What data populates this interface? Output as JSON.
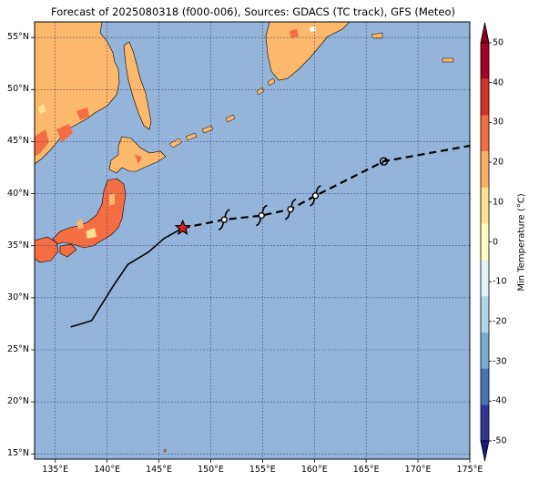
{
  "title": "Forecast of 2025080318 (f000-006), Sources: GDACS (TC track), GFS (Meteo)",
  "map": {
    "lon_range": [
      133,
      175
    ],
    "lat_range": [
      14.5,
      56.5
    ],
    "lon_ticks": [
      {
        "value": 135,
        "label": "135°E"
      },
      {
        "value": 140,
        "label": "140°E"
      },
      {
        "value": 145,
        "label": "145°E"
      },
      {
        "value": 150,
        "label": "150°E"
      },
      {
        "value": 155,
        "label": "155°E"
      },
      {
        "value": 160,
        "label": "160°E"
      },
      {
        "value": 165,
        "label": "165°E"
      },
      {
        "value": 170,
        "label": "170°E"
      },
      {
        "value": 175,
        "label": "175°E"
      }
    ],
    "lat_ticks": [
      {
        "value": 15,
        "label": "15°N"
      },
      {
        "value": 20,
        "label": "20°N"
      },
      {
        "value": 25,
        "label": "25°N"
      },
      {
        "value": 30,
        "label": "30°N"
      },
      {
        "value": 35,
        "label": "35°N"
      },
      {
        "value": 40,
        "label": "40°N"
      },
      {
        "value": 45,
        "label": "45°N"
      },
      {
        "value": 50,
        "label": "50°N"
      },
      {
        "value": 55,
        "label": "55°N"
      }
    ],
    "gridlines": true,
    "ocean_color": "#94b5d9",
    "land_colors": {
      "warm": "#fdb96b",
      "hot": "#f46d43",
      "mild": "#fee090",
      "cool": "#ffffff"
    }
  },
  "track": {
    "past": [
      [
        136.5,
        27.2
      ],
      [
        138.5,
        27.8
      ],
      [
        140.5,
        31.0
      ],
      [
        142.0,
        33.2
      ],
      [
        144.0,
        34.4
      ],
      [
        145.5,
        35.7
      ],
      [
        147.3,
        36.7
      ]
    ],
    "forecast": [
      [
        147.3,
        36.7
      ],
      [
        151.3,
        37.5
      ],
      [
        154.9,
        37.9
      ],
      [
        157.7,
        38.5
      ],
      [
        160.1,
        39.8
      ],
      [
        166.7,
        43.1
      ],
      [
        175.0,
        44.6
      ]
    ],
    "current_position": [
      147.3,
      36.7
    ],
    "storm_symbols": [
      {
        "lon": 151.3,
        "lat": 37.5,
        "kind": "typhoon"
      },
      {
        "lon": 154.9,
        "lat": 37.9,
        "kind": "typhoon"
      },
      {
        "lon": 157.7,
        "lat": 38.5,
        "kind": "typhoon"
      },
      {
        "lon": 160.1,
        "lat": 39.8,
        "kind": "typhoon"
      },
      {
        "lon": 166.7,
        "lat": 43.1,
        "kind": "extratropical"
      }
    ],
    "star_color": "#e31a1c"
  },
  "colorbar": {
    "label": "Min Temperature (°C)",
    "min": -50,
    "max": 50,
    "ticks": [
      -50,
      -40,
      -30,
      -20,
      -10,
      0,
      10,
      20,
      30,
      40,
      50
    ],
    "colors": [
      "#313695",
      "#4575b4",
      "#74add1",
      "#abd9e9",
      "#e0f3f8",
      "#ffffbf",
      "#fee090",
      "#fdae61",
      "#f46d43",
      "#d73027",
      "#a50026"
    ],
    "extend_low_color": "#1a1a80",
    "extend_high_color": "#8b0020"
  }
}
